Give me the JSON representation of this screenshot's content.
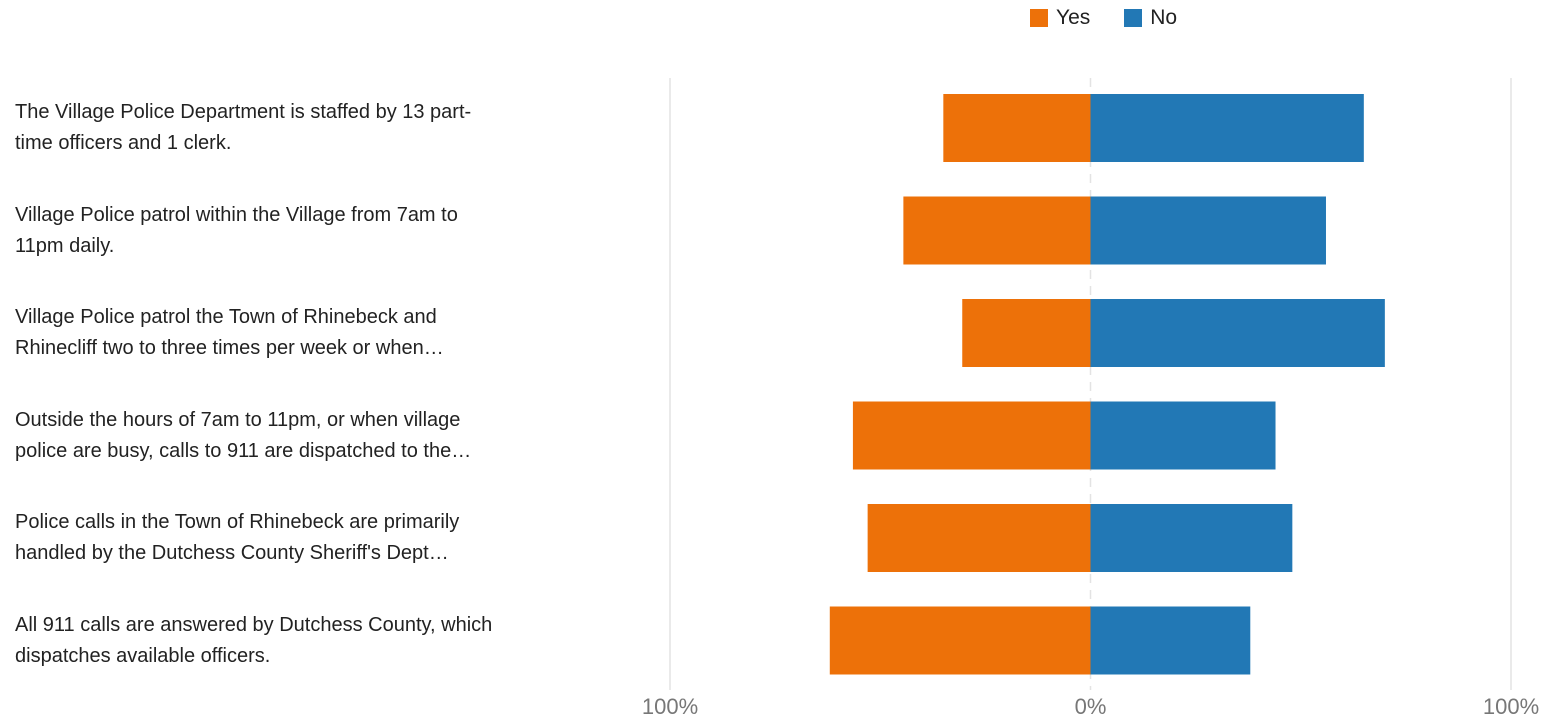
{
  "colors": {
    "yes": "#ED7109",
    "no": "#2278B5",
    "grid": "#E3E3E3",
    "center": "#E3E3E3"
  },
  "chart_data": {
    "type": "bar",
    "orientation": "horizontal",
    "stacking": "diverging",
    "legend": {
      "placement": "top-right"
    },
    "grid": true,
    "xlim": [
      -100,
      100
    ],
    "ticks": [
      {
        "value": -100,
        "label": "100%"
      },
      {
        "value": 0,
        "label": "0%"
      },
      {
        "value": 100,
        "label": "100%"
      }
    ],
    "categories": [
      [
        "The Village Police Department is staffed by 13 part-",
        "time officers and 1 clerk."
      ],
      [
        "Village Police patrol within the Village from 7am to",
        "11pm daily."
      ],
      [
        "Village Police patrol the Town of Rhinebeck and",
        "Rhinecliff two to three times per week or when…"
      ],
      [
        "Outside the hours of 7am to 11pm, or when village",
        "police are busy, calls to 911 are dispatched to the…"
      ],
      [
        "Police calls in the Town of Rhinebeck are primarily",
        "handled by the Dutchess County Sheriff's Dept…"
      ],
      [
        "All 911 calls are answered by Dutchess County, which",
        "dispatches available officers."
      ]
    ],
    "series": [
      {
        "name": "Yes",
        "values": [
          35,
          44.5,
          30.5,
          56.5,
          53,
          62
        ]
      },
      {
        "name": "No",
        "values": [
          65,
          56,
          70,
          44,
          48,
          38
        ]
      }
    ]
  }
}
